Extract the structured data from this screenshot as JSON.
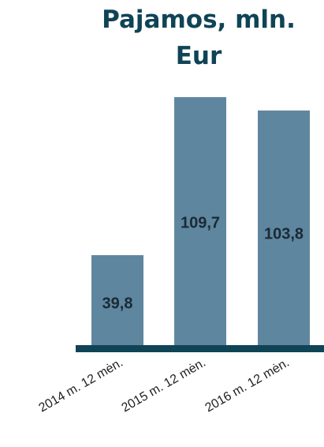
{
  "chart_data": {
    "type": "bar",
    "title": "Pajamos, mln. Eur",
    "categories": [
      "2014 m. 12 mėn.",
      "2015 m. 12 mėn.",
      "2016 m. 12 mėn."
    ],
    "values": [
      39.8,
      109.7,
      103.8
    ],
    "data_labels": [
      "39,8",
      "109,7",
      "103,8"
    ],
    "xlabel": "",
    "ylabel": "",
    "ylim": [
      0,
      115
    ],
    "grid": false,
    "legend": "none",
    "colors": {
      "bar": "#5f869f",
      "axis": "#0f4456",
      "title": "#0f4456",
      "data_label": "#1a2a36"
    }
  }
}
